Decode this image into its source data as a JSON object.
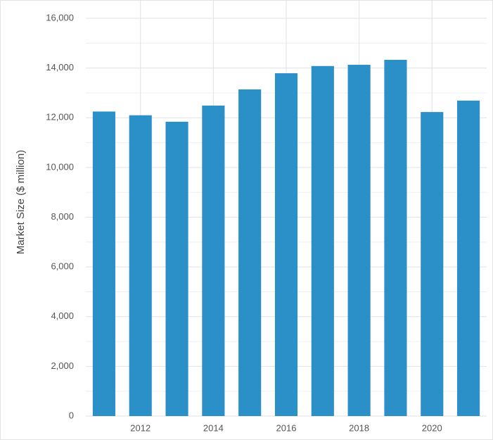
{
  "chart_data": {
    "type": "bar",
    "y_label": "Market Size ($ million)",
    "categories": [
      null,
      "2012",
      null,
      "2014",
      null,
      "2016",
      null,
      "2018",
      null,
      "2020",
      null
    ],
    "values": [
      12250,
      12100,
      11840,
      12490,
      13140,
      13790,
      14080,
      14130,
      14330,
      12230,
      12690
    ],
    "color": "#2b8fc8",
    "ylim": [
      0,
      16000
    ],
    "yticks": [
      0,
      {
        "value": 2000,
        "label": "2,000"
      },
      {
        "value": 4000,
        "label": "4,000"
      },
      {
        "value": 6000,
        "label": "6,000"
      },
      {
        "value": 8000,
        "label": "8,000"
      },
      {
        "value": 10000,
        "label": "10,000"
      },
      {
        "value": 12000,
        "label": "12,000"
      },
      {
        "value": 14000,
        "label": "14,000"
      },
      {
        "value": 16000,
        "label": "16,000"
      }
    ],
    "minor_yticks": [
      1000,
      3000,
      5000,
      7000,
      9000,
      11000,
      13000,
      15000
    ],
    "grid": true
  }
}
